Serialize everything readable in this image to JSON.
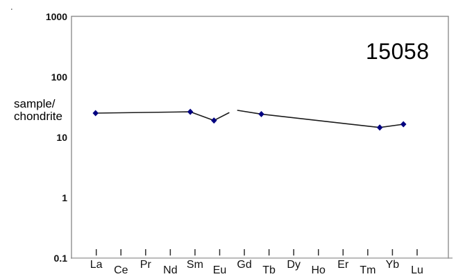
{
  "figure": {
    "corner_dot": ".",
    "sample_id": "15058",
    "y_axis_label": [
      "sample/",
      "chondrite"
    ]
  },
  "chart_data": {
    "type": "line",
    "title": "15058",
    "ylabel": "sample/chondrite",
    "xlabel": "",
    "y_scale": "log",
    "ylim": [
      0.1,
      1000
    ],
    "y_tick_labels": [
      "1000",
      "100",
      "10",
      "1",
      "0.1"
    ],
    "y_tick_values": [
      1000,
      100,
      10,
      1,
      0.1
    ],
    "categories": [
      "La",
      "Ce",
      "Pr",
      "Nd",
      "Sm",
      "Eu",
      "Gd",
      "Tb",
      "Dy",
      "Ho",
      "Er",
      "Tm",
      "Yb",
      "Lu"
    ],
    "grid": false,
    "legend": false,
    "colors": {
      "marker": "#000080",
      "line": "#1a1a1a",
      "border": "#8f8f8f",
      "baseline": "#bcbcbc",
      "tick": "#2e2e2e"
    },
    "series": [
      {
        "name": "15058",
        "marker": "diamond",
        "marked_points": [
          {
            "element": "La",
            "value": 24.9
          },
          {
            "element": "Sm",
            "value": 26.2
          },
          {
            "element": "Eu",
            "value": 18.8
          },
          {
            "element": "Tb",
            "value": 24.0
          },
          {
            "element": "Yb",
            "value": 14.4
          },
          {
            "element": "Lu",
            "value": 16.3
          }
        ],
        "line_break": "gap in line between Eu and Gd",
        "segments": [
          {
            "vertices": [
              {
                "element": "La",
                "value": 24.9
              },
              {
                "element": "Sm",
                "value": 26.2
              },
              {
                "element": "Eu",
                "value": 18.8
              },
              {
                "element": "Gd",
                "value": 30.0
              }
            ],
            "clip_end_fraction": 0.63
          },
          {
            "vertices": [
              {
                "element": "Gd",
                "value": 27.7
              },
              {
                "element": "Tb",
                "value": 24.0
              },
              {
                "element": "Yb",
                "value": 14.4
              },
              {
                "element": "Lu",
                "value": 16.3
              }
            ]
          }
        ]
      }
    ]
  }
}
